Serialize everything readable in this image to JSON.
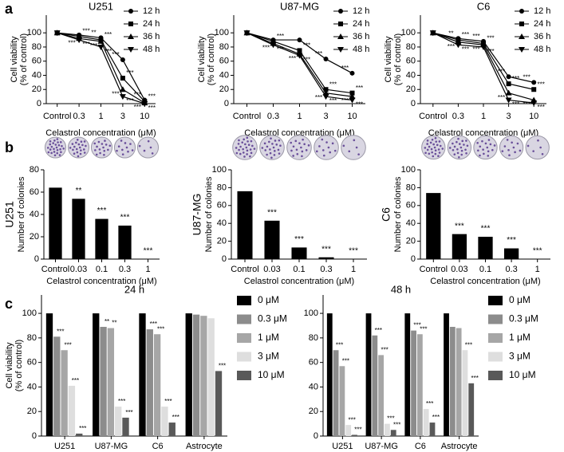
{
  "panel_labels": [
    "a",
    "b",
    "c"
  ],
  "chart_data": [
    {
      "type": "line",
      "title": "U251",
      "ylabel": [
        "Cell viability",
        "(% of control)"
      ],
      "xlabel": "Celastrol concentration (μM)",
      "categories": [
        "Control",
        "0.3",
        "1",
        "3",
        "10"
      ],
      "ylim": [
        0,
        125
      ],
      "yticks": [
        0,
        20,
        40,
        60,
        80,
        100
      ],
      "series": [
        {
          "name": "12 h",
          "color": "#000000",
          "marker": "circle",
          "values": [
            100,
            97,
            93,
            62,
            5
          ],
          "stars": [
            null,
            null,
            "**",
            "***",
            "***"
          ]
        },
        {
          "name": "24 h",
          "color": "#000000",
          "marker": "square",
          "values": [
            100,
            95,
            90,
            36,
            3
          ],
          "stars": [
            null,
            "***",
            "***",
            "***",
            "***"
          ]
        },
        {
          "name": "36 h",
          "color": "#000000",
          "marker": "triangle-up",
          "values": [
            100,
            92,
            88,
            20,
            1
          ],
          "stars": [
            null,
            "***",
            "***",
            "***",
            "***"
          ]
        },
        {
          "name": "48 h",
          "color": "#000000",
          "marker": "triangle-down",
          "values": [
            100,
            90,
            80,
            10,
            0
          ],
          "stars": [
            null,
            "***",
            "***",
            "***",
            "***"
          ]
        }
      ]
    },
    {
      "type": "line",
      "title": "U87-MG",
      "ylabel": [
        "Cell viability",
        "(% of control)"
      ],
      "xlabel": "Celastrol concentration (μM)",
      "categories": [
        "Control",
        "0.3",
        "1",
        "3",
        "10"
      ],
      "ylim": [
        0,
        125
      ],
      "yticks": [
        0,
        20,
        40,
        60,
        80,
        100
      ],
      "series": [
        {
          "name": "12 h",
          "color": "#000000",
          "marker": "circle",
          "values": [
            100,
            90,
            90,
            63,
            43
          ],
          "stars": [
            null,
            null,
            null,
            "***",
            "***"
          ]
        },
        {
          "name": "24 h",
          "color": "#000000",
          "marker": "square",
          "values": [
            100,
            88,
            75,
            20,
            15
          ],
          "stars": [
            null,
            "***",
            "***",
            "***",
            "***"
          ]
        },
        {
          "name": "36 h",
          "color": "#000000",
          "marker": "triangle-up",
          "values": [
            100,
            85,
            70,
            15,
            10
          ],
          "stars": [
            null,
            "***",
            "***",
            "***",
            "***"
          ]
        },
        {
          "name": "48 h",
          "color": "#000000",
          "marker": "triangle-down",
          "values": [
            100,
            83,
            68,
            10,
            5
          ],
          "stars": [
            null,
            "***",
            "***",
            "***",
            "***"
          ]
        }
      ]
    },
    {
      "type": "line",
      "title": "C6",
      "ylabel": [
        "Cell viability",
        "(% of control)"
      ],
      "xlabel": "Celastrol concentration (μM)",
      "categories": [
        "Control",
        "0.3",
        "1",
        "3",
        "10"
      ],
      "ylim": [
        0,
        125
      ],
      "yticks": [
        0,
        20,
        40,
        60,
        80,
        100
      ],
      "series": [
        {
          "name": "12 h",
          "color": "#000000",
          "marker": "circle",
          "values": [
            100,
            92,
            88,
            38,
            30
          ],
          "stars": [
            null,
            "**",
            "***",
            "***",
            "***"
          ]
        },
        {
          "name": "24 h",
          "color": "#000000",
          "marker": "square",
          "values": [
            100,
            90,
            85,
            28,
            20
          ],
          "stars": [
            null,
            "***",
            "***",
            "***",
            "***"
          ]
        },
        {
          "name": "36 h",
          "color": "#000000",
          "marker": "triangle-up",
          "values": [
            100,
            87,
            83,
            15,
            5
          ],
          "stars": [
            null,
            "***",
            "***",
            "***",
            "***"
          ]
        },
        {
          "name": "48 h",
          "color": "#000000",
          "marker": "triangle-down",
          "values": [
            100,
            83,
            80,
            5,
            1
          ],
          "stars": [
            null,
            "***",
            "***",
            "***",
            "***"
          ]
        }
      ]
    },
    {
      "type": "bar",
      "row_label": "U251",
      "ylabel": "Number of colonies",
      "xlabel": "Celastrol concentration (μM)",
      "categories": [
        "Control",
        "0.03",
        "0.1",
        "0.3",
        "1"
      ],
      "values": [
        64,
        54,
        36,
        30,
        0
      ],
      "stars": [
        null,
        "**",
        "***",
        "***",
        "***"
      ],
      "color": "#000000",
      "ylim": [
        0,
        80
      ],
      "yticks": [
        0,
        20,
        40,
        60,
        80
      ]
    },
    {
      "type": "bar",
      "row_label": "U87-MG",
      "ylabel": "Number of colonies",
      "xlabel": "Celastrol concentration (μM)",
      "categories": [
        "Control",
        "0.03",
        "0.1",
        "0.3",
        "1"
      ],
      "values": [
        76,
        43,
        13,
        2,
        0
      ],
      "stars": [
        null,
        "***",
        "***",
        "***",
        "***"
      ],
      "color": "#000000",
      "ylim": [
        0,
        100
      ],
      "yticks": [
        0,
        20,
        40,
        60,
        80,
        100
      ]
    },
    {
      "type": "bar",
      "row_label": "C6",
      "ylabel": "Number of colonies",
      "xlabel": "Celastrol concentration (μM)",
      "categories": [
        "Control",
        "0.03",
        "0.1",
        "0.3",
        "1"
      ],
      "values": [
        74,
        28,
        25,
        12,
        0
      ],
      "stars": [
        null,
        "***",
        "***",
        "***",
        "***"
      ],
      "color": "#000000",
      "ylim": [
        0,
        100
      ],
      "yticks": [
        0,
        20,
        40,
        60,
        80,
        100
      ]
    },
    {
      "type": "grouped_bar",
      "title": "24 h",
      "ylabel": [
        "Cell viability",
        "(% of control)"
      ],
      "categories": [
        "U251",
        "U87-MG",
        "C6",
        "Astrocyte"
      ],
      "ylim": [
        0,
        115
      ],
      "yticks": [
        0,
        20,
        40,
        60,
        80,
        100
      ],
      "series": [
        {
          "name": "0 μM",
          "color": "#000000",
          "values": [
            100,
            100,
            100,
            100
          ],
          "stars": [
            null,
            null,
            null,
            null
          ]
        },
        {
          "name": "0.3 μM",
          "color": "#8c8c8c",
          "values": [
            81,
            89,
            87,
            99
          ],
          "stars": [
            "***",
            "**",
            "***",
            null
          ]
        },
        {
          "name": "1 μM",
          "color": "#a6a6a6",
          "values": [
            70,
            88,
            83,
            98
          ],
          "stars": [
            "***",
            "**",
            "***",
            null
          ]
        },
        {
          "name": "3 μM",
          "color": "#dedede",
          "values": [
            41,
            24,
            24,
            96
          ],
          "stars": [
            "***",
            "***",
            "***",
            null
          ]
        },
        {
          "name": "10 μM",
          "color": "#595959",
          "values": [
            2,
            15,
            11,
            53
          ],
          "stars": [
            "***",
            "***",
            "***",
            "***"
          ]
        }
      ]
    },
    {
      "type": "grouped_bar",
      "title": "48 h",
      "categories": [
        "U251",
        "U87-MG",
        "C6",
        "Astrocyte"
      ],
      "ylim": [
        0,
        115
      ],
      "yticks": [
        0,
        20,
        40,
        60,
        80,
        100
      ],
      "series": [
        {
          "name": "0 μM",
          "color": "#000000",
          "values": [
            100,
            100,
            100,
            100
          ],
          "stars": [
            null,
            null,
            null,
            null
          ]
        },
        {
          "name": "0.3 μM",
          "color": "#8c8c8c",
          "values": [
            70,
            82,
            86,
            89
          ],
          "stars": [
            "***",
            "***",
            "***",
            null
          ]
        },
        {
          "name": "1 μM",
          "color": "#a6a6a6",
          "values": [
            57,
            66,
            83,
            88
          ],
          "stars": [
            "***",
            "***",
            "***",
            null
          ]
        },
        {
          "name": "3 μM",
          "color": "#dedede",
          "values": [
            9,
            10,
            22,
            70
          ],
          "stars": [
            "***",
            "***",
            "***",
            "***"
          ]
        },
        {
          "name": "10 μM",
          "color": "#595959",
          "values": [
            1,
            5,
            11,
            43
          ],
          "stars": [
            "***",
            "***",
            "***",
            "***"
          ]
        }
      ]
    }
  ]
}
